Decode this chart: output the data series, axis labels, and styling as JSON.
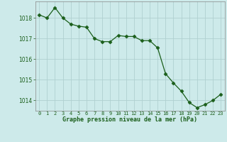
{
  "x": [
    0,
    1,
    2,
    3,
    4,
    5,
    6,
    7,
    8,
    9,
    10,
    11,
    12,
    13,
    14,
    15,
    16,
    17,
    18,
    19,
    20,
    21,
    22,
    23
  ],
  "y": [
    1018.15,
    1018.0,
    1018.5,
    1018.0,
    1017.7,
    1017.6,
    1017.55,
    1017.0,
    1016.85,
    1016.85,
    1017.15,
    1017.1,
    1017.1,
    1016.9,
    1016.9,
    1016.55,
    1015.3,
    1014.85,
    1014.45,
    1013.9,
    1013.65,
    1013.8,
    1014.0,
    1014.3
  ],
  "line_color": "#1a5e1a",
  "marker": "D",
  "marker_size": 2.5,
  "bg_color": "#cdeaea",
  "grid_color": "#b0d0d0",
  "xlabel": "Graphe pression niveau de la mer (hPa)",
  "xlabel_color": "#1a5e1a",
  "tick_color": "#1a5e1a",
  "ylim": [
    1013.5,
    1018.8
  ],
  "yticks": [
    1014,
    1015,
    1016,
    1017,
    1018
  ],
  "xlim": [
    -0.5,
    23.5
  ],
  "xtick_labels": [
    "0",
    "1",
    "2",
    "3",
    "4",
    "5",
    "6",
    "7",
    "8",
    "9",
    "10",
    "11",
    "12",
    "13",
    "14",
    "15",
    "16",
    "17",
    "18",
    "19",
    "20",
    "21",
    "22",
    "23"
  ]
}
